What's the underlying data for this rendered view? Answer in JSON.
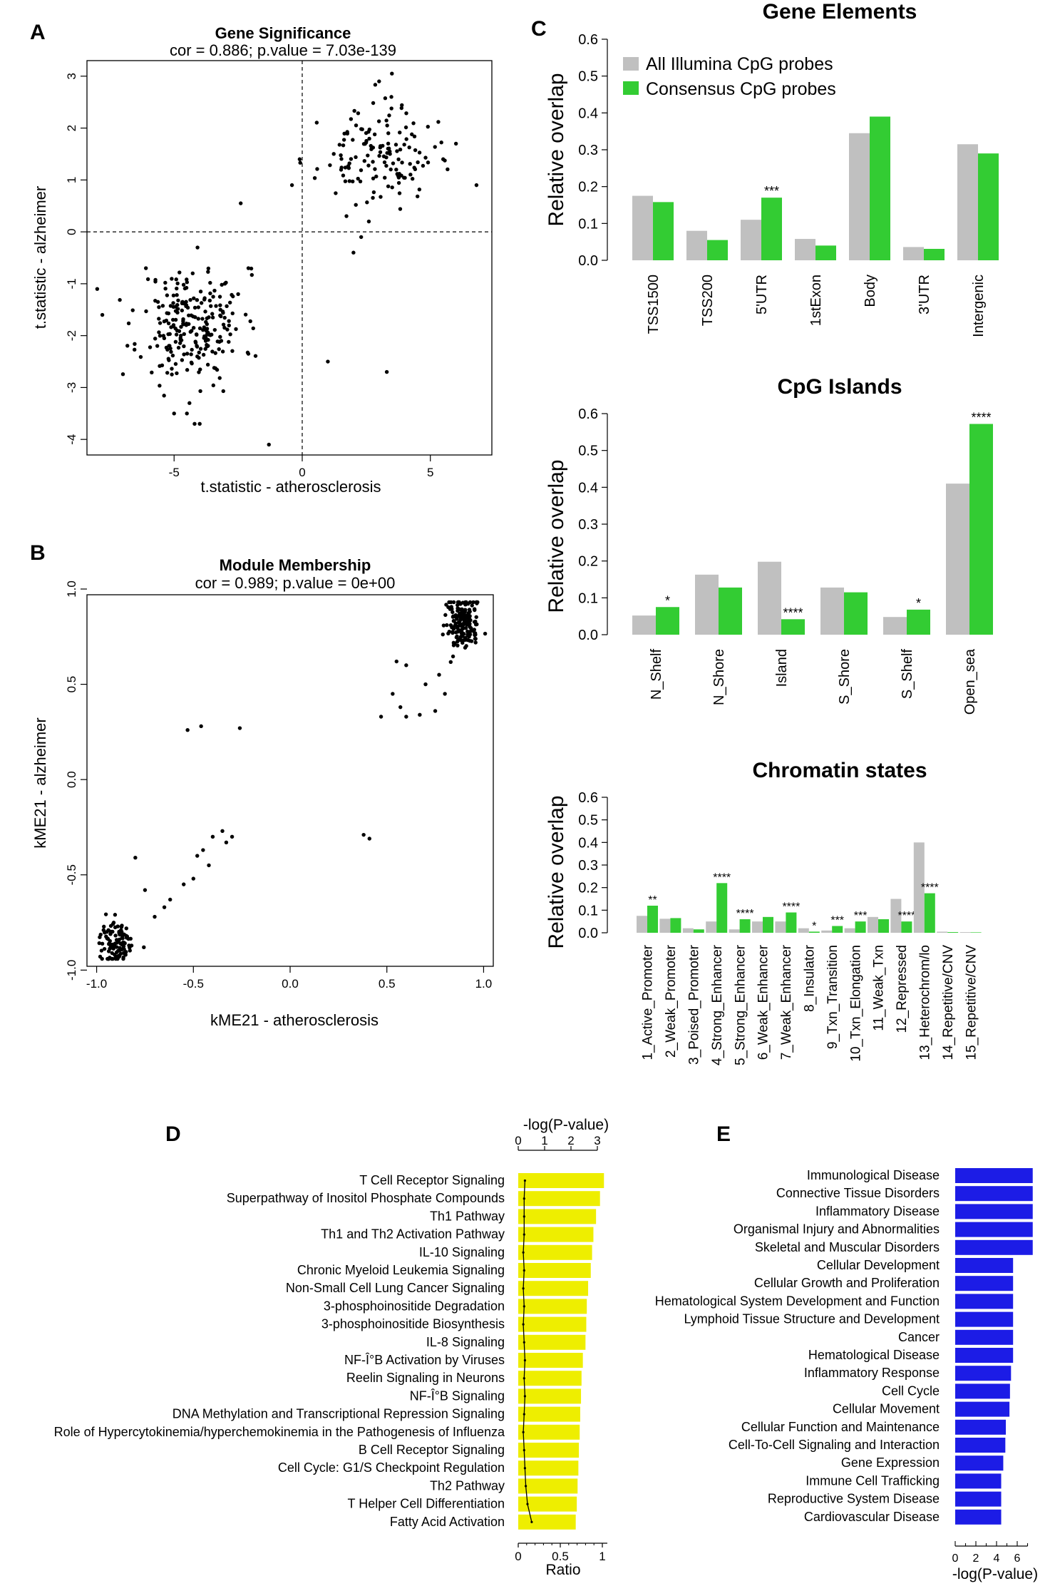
{
  "colors": {
    "gray": "#c0c0c0",
    "green": "#33cc33",
    "yellow": "#eeee00",
    "blue": "#1c1ce6",
    "black": "#000000"
  },
  "chart_data": [
    {
      "id": "A",
      "panel_label": "A",
      "type": "scatter",
      "title": "Gene Significance",
      "subtitle": "cor = 0.886; p.value = 7.03e-139",
      "xlabel": "t.statistic - atherosclerosis",
      "ylabel": "t.statistic - alzheimer",
      "xlim": [
        -8.4,
        7.4
      ],
      "ylim": [
        -4.3,
        3.3
      ],
      "xticks": [
        -5,
        0,
        5
      ],
      "yticks": [
        -4,
        -3,
        -2,
        -1,
        0,
        1,
        2,
        3
      ],
      "reference_lines": {
        "x": 0,
        "y": 0
      },
      "clusters": [
        {
          "n": 240,
          "x_mean": -4.3,
          "x_sd": 1.0,
          "y_mean": -1.8,
          "y_sd": 0.55,
          "seed": 11
        },
        {
          "n": 140,
          "x_mean": 2.9,
          "x_sd": 1.1,
          "y_mean": 1.45,
          "y_sd": 0.45,
          "seed": 23
        }
      ],
      "points": [
        [
          -8.0,
          -1.1
        ],
        [
          -7.8,
          -1.6
        ],
        [
          -6.1,
          -0.7
        ],
        [
          -5.0,
          -3.5
        ],
        [
          -4.5,
          -3.5
        ],
        [
          -4.2,
          -3.7
        ],
        [
          -4.0,
          -3.7
        ],
        [
          -4.4,
          -3.3
        ],
        [
          -1.3,
          -4.1
        ],
        [
          -2.4,
          0.55
        ],
        [
          -0.4,
          0.9
        ],
        [
          -0.1,
          1.4
        ],
        [
          1.0,
          -2.5
        ],
        [
          3.3,
          -2.7
        ],
        [
          2.3,
          -0.1
        ],
        [
          2.0,
          -0.4
        ],
        [
          2.6,
          0.2
        ],
        [
          3.0,
          2.9
        ],
        [
          3.5,
          3.05
        ],
        [
          6.8,
          0.9
        ],
        [
          6.0,
          1.7
        ],
        [
          5.5,
          1.4
        ],
        [
          -2.5,
          -1.2
        ],
        [
          -2.1,
          -0.7
        ]
      ]
    },
    {
      "id": "B",
      "panel_label": "B",
      "type": "scatter",
      "title": "Module Membership",
      "subtitle": "cor = 0.989; p.value = 0e+00",
      "xlabel": "kME21 - atherosclerosis",
      "ylabel": "kME21 - alzheimer",
      "xlim": [
        -1.05,
        1.05
      ],
      "ylim": [
        -0.98,
        0.97
      ],
      "xticks": [
        -1.0,
        -0.5,
        0.0,
        0.5,
        1.0
      ],
      "yticks": [
        -1.0,
        -0.5,
        0.0,
        0.5,
        1.0
      ],
      "clusters": [
        {
          "n": 180,
          "x_mean": 0.89,
          "x_sd": 0.045,
          "y_mean": 0.82,
          "y_sd": 0.07,
          "seed": 31
        },
        {
          "n": 110,
          "x_mean": -0.9,
          "x_sd": 0.045,
          "y_mean": -0.86,
          "y_sd": 0.06,
          "seed": 47
        }
      ],
      "points": [
        [
          -0.53,
          0.26
        ],
        [
          -0.46,
          0.28
        ],
        [
          -0.26,
          0.27
        ],
        [
          0.38,
          -0.29
        ],
        [
          0.41,
          -0.31
        ],
        [
          -0.45,
          -0.37
        ],
        [
          -0.42,
          -0.45
        ],
        [
          -0.48,
          -0.4
        ],
        [
          -0.4,
          -0.3
        ],
        [
          -0.35,
          -0.27
        ],
        [
          -0.3,
          -0.3
        ],
        [
          -0.33,
          -0.33
        ],
        [
          -0.5,
          -0.52
        ],
        [
          -0.55,
          -0.55
        ],
        [
          -0.62,
          -0.63
        ],
        [
          -0.65,
          -0.67
        ],
        [
          -0.75,
          -0.58
        ],
        [
          -0.8,
          -0.41
        ],
        [
          -0.7,
          -0.72
        ],
        [
          0.47,
          0.33
        ],
        [
          0.53,
          0.45
        ],
        [
          0.57,
          0.38
        ],
        [
          0.6,
          0.33
        ],
        [
          0.67,
          0.34
        ],
        [
          0.75,
          0.36
        ],
        [
          0.8,
          0.45
        ],
        [
          0.6,
          0.6
        ],
        [
          0.55,
          0.62
        ],
        [
          0.7,
          0.5
        ],
        [
          0.77,
          0.55
        ]
      ]
    },
    {
      "id": "C1",
      "panel_label": "C",
      "type": "bar",
      "title": "Gene Elements",
      "ylabel": "Relative overlap",
      "ylim": [
        0,
        0.6
      ],
      "yticks": [
        0.0,
        0.1,
        0.2,
        0.3,
        0.4,
        0.5,
        0.6
      ],
      "legend": {
        "position": "top-left",
        "entries": [
          "All Illumina CpG probes",
          "Consensus CpG probes"
        ]
      },
      "categories": [
        "TSS1500",
        "TSS200",
        "5'UTR",
        "1stExon",
        "Body",
        "3'UTR",
        "Intergenic"
      ],
      "series": [
        {
          "name": "All Illumina CpG probes",
          "values": [
            0.175,
            0.08,
            0.11,
            0.058,
            0.345,
            0.036,
            0.315
          ]
        },
        {
          "name": "Consensus CpG probes",
          "values": [
            0.158,
            0.055,
            0.17,
            0.04,
            0.39,
            0.031,
            0.29
          ]
        }
      ],
      "annotations": [
        "",
        "",
        "***",
        "",
        "",
        "",
        ""
      ]
    },
    {
      "id": "C2",
      "type": "bar",
      "title": "CpG Islands",
      "ylabel": "Relative overlap",
      "ylim": [
        0,
        0.6
      ],
      "yticks": [
        0.0,
        0.1,
        0.2,
        0.3,
        0.4,
        0.5,
        0.6
      ],
      "categories": [
        "N_Shelf",
        "N_Shore",
        "Island",
        "S_Shore",
        "S_Shelf",
        "Open_sea"
      ],
      "series": [
        {
          "name": "All Illumina CpG probes",
          "values": [
            0.052,
            0.163,
            0.198,
            0.128,
            0.048,
            0.41
          ]
        },
        {
          "name": "Consensus CpG probes",
          "values": [
            0.075,
            0.128,
            0.042,
            0.115,
            0.068,
            0.572
          ]
        }
      ],
      "annotations": [
        "*",
        "",
        "****",
        "",
        "*",
        "****"
      ]
    },
    {
      "id": "C3",
      "type": "bar",
      "title": "Chromatin states",
      "ylabel": "Relative overlap",
      "ylim": [
        0,
        0.6
      ],
      "yticks": [
        0.0,
        0.1,
        0.2,
        0.3,
        0.4,
        0.5,
        0.6
      ],
      "categories": [
        "1_Active_Promoter",
        "2_Weak_Promoter",
        "3_Poised_Promoter",
        "4_Strong_Enhancer",
        "5_Strong_Enhancer",
        "6_Weak_Enhancer",
        "7_Weak_Enhancer",
        "8_Insulator",
        "9_Txn_Transition",
        "10_Txn_Elongation",
        "11_Weak_Txn",
        "12_Repressed",
        "13_Heterochrom/lo",
        "14_Repetitive/CNV",
        "15_Repetitive/CNV"
      ],
      "series": [
        {
          "name": "All Illumina CpG probes",
          "values": [
            0.075,
            0.062,
            0.02,
            0.05,
            0.015,
            0.05,
            0.05,
            0.02,
            0.01,
            0.02,
            0.07,
            0.15,
            0.4,
            0.005,
            0.003
          ]
        },
        {
          "name": "Consensus CpG probes",
          "values": [
            0.12,
            0.065,
            0.015,
            0.22,
            0.06,
            0.07,
            0.09,
            0.005,
            0.03,
            0.05,
            0.06,
            0.05,
            0.175,
            0.003,
            0.002
          ]
        }
      ],
      "annotations": [
        "**",
        "",
        "",
        "****",
        "****",
        "",
        "****",
        "*",
        "***",
        "***",
        "",
        "****",
        "****",
        "",
        ""
      ]
    },
    {
      "id": "D",
      "panel_label": "D",
      "type": "bar",
      "orientation": "horizontal",
      "top_axis_label": "-log(P-value)",
      "top_ticks": [
        0,
        1,
        2,
        3
      ],
      "top_range": [
        0,
        3.2
      ],
      "xlabel": "Ratio",
      "xticks": [
        0,
        0.5,
        1
      ],
      "xtick_labels": [
        "0",
        "0.5",
        "1"
      ],
      "xlim": [
        0,
        1.07
      ],
      "categories": [
        "T Cell Receptor Signaling",
        "Superpathway of Inositol Phosphate Compounds",
        "Th1 Pathway",
        "Th1 and Th2 Activation Pathway",
        "IL-10 Signaling",
        "Chronic Myeloid Leukemia Signaling",
        "Non-Small Cell Lung Cancer Signaling",
        "3-phosphoinositide Degradation",
        "3-phosphoinositide Biosynthesis",
        "IL-8 Signaling",
        "NF-Î°B Activation by Viruses",
        "Reelin Signaling in Neurons",
        "NF-Î°B Signaling",
        "DNA Methylation and Transcriptional Repression Signaling",
        "Role of Hypercytokinemia/hyperchemokinemia in the Pathogenesis of Influenza",
        "B Cell Receptor Signaling",
        "Cell Cycle: G1/S Checkpoint Regulation",
        "Th2 Pathway",
        "T Helper Cell Differentiation",
        "Fatty Acid Activation"
      ],
      "values": [
        3.25,
        3.1,
        2.95,
        2.85,
        2.8,
        2.75,
        2.65,
        2.6,
        2.58,
        2.55,
        2.45,
        2.4,
        2.38,
        2.35,
        2.33,
        2.3,
        2.28,
        2.25,
        2.22,
        2.18
      ],
      "ratio_values": [
        0.08,
        0.07,
        0.07,
        0.07,
        0.06,
        0.07,
        0.06,
        0.07,
        0.06,
        0.07,
        0.08,
        0.07,
        0.08,
        0.07,
        0.06,
        0.07,
        0.08,
        0.09,
        0.11,
        0.16
      ]
    },
    {
      "id": "E",
      "panel_label": "E",
      "type": "bar",
      "orientation": "horizontal",
      "xlabel": "-log(P-value)",
      "xticks": [
        0,
        2,
        4,
        6
      ],
      "xlim": [
        0,
        7.6
      ],
      "categories": [
        "Immunological Disease",
        "Connective Tissue Disorders",
        "Inflammatory Disease",
        "Organismal Injury and Abnormalities",
        "Skeletal and Muscular Disorders",
        "Cellular Development",
        "Cellular Growth and Proliferation",
        "Hematological System Development and Function",
        "Lymphoid Tissue Structure and Development",
        "Cancer",
        "Hematological Disease",
        "Inflammatory Response",
        "Cell Cycle",
        "Cellular Movement",
        "Cellular Function and Maintenance",
        "Cell-To-Cell Signaling and Interaction",
        "Gene Expression",
        "Immune Cell Trafficking",
        "Reproductive System Disease",
        "Cardiovascular Disease"
      ],
      "values": [
        7.5,
        7.5,
        7.5,
        7.5,
        7.5,
        5.6,
        5.6,
        5.6,
        5.6,
        5.6,
        5.6,
        5.4,
        5.3,
        5.25,
        4.9,
        4.85,
        4.65,
        4.45,
        4.45,
        4.45
      ]
    }
  ]
}
